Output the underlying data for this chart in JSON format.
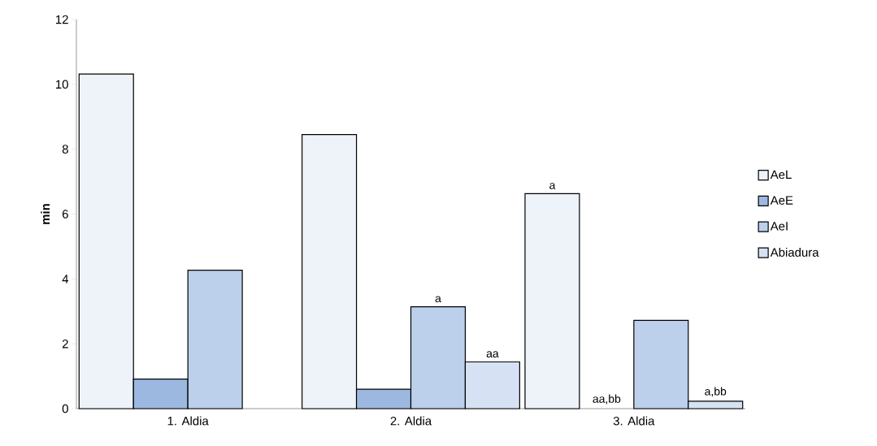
{
  "chart_data": {
    "type": "bar",
    "ylabel": "min",
    "categories": [
      "1. Aldia",
      "2. Aldia",
      "3. Aldia"
    ],
    "series": [
      {
        "name": "AeL",
        "color": "#eef3fa",
        "values": [
          10.32,
          8.45,
          6.63
        ],
        "value_labels": [
          null,
          null,
          "a"
        ]
      },
      {
        "name": "AeE",
        "color": "#9db8e0",
        "values": [
          0.91,
          0.6,
          null
        ],
        "value_labels": [
          null,
          null,
          "aa,bb"
        ]
      },
      {
        "name": "AeI",
        "color": "#bcd0ec",
        "values": [
          4.27,
          3.14,
          2.72
        ],
        "value_labels": [
          null,
          "a",
          null
        ]
      },
      {
        "name": "Abiadura",
        "color": "#d6e2f3",
        "values": [
          null,
          1.44,
          0.23
        ],
        "value_labels": [
          null,
          "aa",
          "a,bb"
        ]
      }
    ],
    "ylim": [
      0,
      12
    ],
    "yticks": [
      0,
      2,
      4,
      6,
      8,
      10,
      12
    ],
    "grid": false,
    "legend": "right"
  }
}
